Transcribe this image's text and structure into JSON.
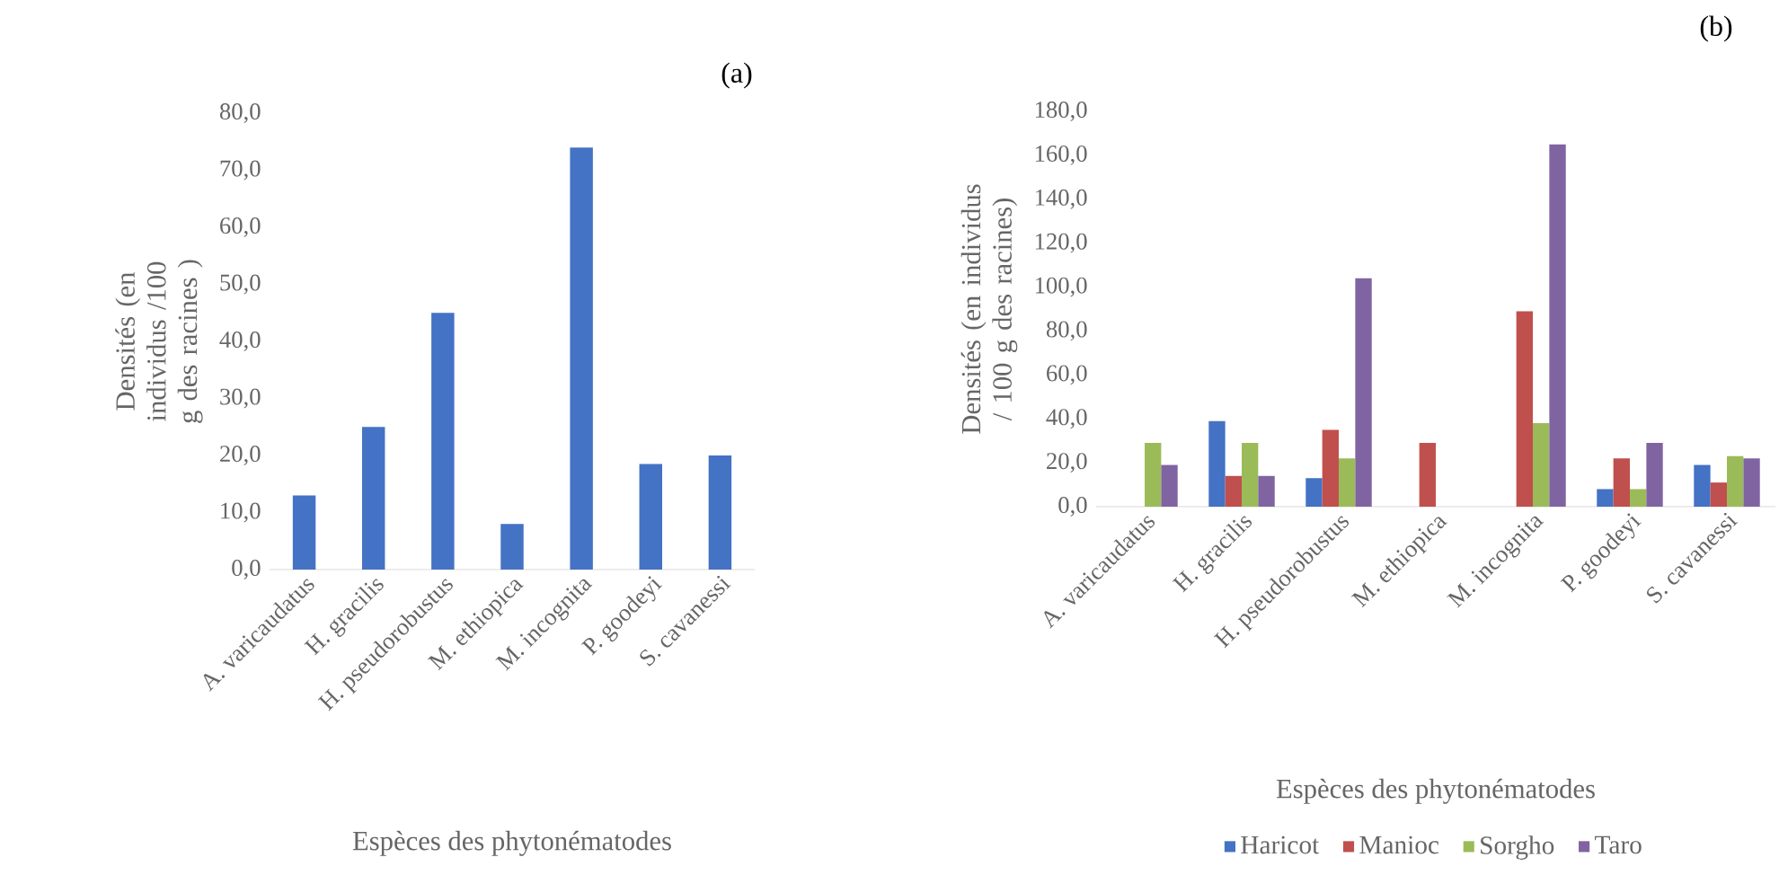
{
  "chart_data": [
    {
      "type": "bar",
      "title": "(a)",
      "xlabel": "Espèces des phytonématodes",
      "ylabel": "Densités (en  individus /100 g des racines )",
      "categories": [
        "A. varicaudatus",
        "H. gracilis",
        "H. pseudorobustus",
        "M. ethiopica",
        "M. incognita",
        "P. goodeyi",
        "S. cavanessi"
      ],
      "values": [
        13,
        25,
        45,
        8,
        74,
        18.5,
        20
      ],
      "color": "#4472c4",
      "ylim": [
        0,
        80
      ],
      "yticks": [
        {
          "value": 0,
          "label": "0,0"
        },
        {
          "value": 10,
          "label": "10,0"
        },
        {
          "value": 20,
          "label": "20,0"
        },
        {
          "value": 30,
          "label": "30,0"
        },
        {
          "value": 40,
          "label": "40,0"
        },
        {
          "value": 50,
          "label": "50,0"
        },
        {
          "value": 60,
          "label": "60,0"
        },
        {
          "value": 70,
          "label": "70,0"
        },
        {
          "value": 80,
          "label": "80,0"
        }
      ]
    },
    {
      "type": "bar",
      "title": "(b)",
      "xlabel": "Espèces des phytonématodes",
      "ylabel": "Densités (en individus / 100 g des racines)",
      "categories": [
        "A. varicaudatus",
        "H. gracilis",
        "H. pseudorobustus",
        "M. ethiopica",
        "M. incognita",
        "P. goodeyi",
        "S. cavanessi"
      ],
      "series": [
        {
          "name": "Haricot",
          "color": "#4472c4",
          "values": [
            null,
            39,
            13,
            null,
            null,
            8,
            19
          ]
        },
        {
          "name": "Manioc",
          "color": "#c0504d",
          "values": [
            null,
            14,
            35,
            29,
            89,
            22,
            11
          ]
        },
        {
          "name": "Sorgho",
          "color": "#9bbb59",
          "values": [
            29,
            29,
            22,
            null,
            38,
            8,
            23
          ]
        },
        {
          "name": "Taro",
          "color": "#8064a2",
          "values": [
            19,
            14,
            104,
            null,
            165,
            29,
            22
          ]
        }
      ],
      "ylim": [
        0,
        180
      ],
      "yticks": [
        {
          "value": 0,
          "label": "0,0"
        },
        {
          "value": 20,
          "label": "20,0"
        },
        {
          "value": 40,
          "label": "40,0"
        },
        {
          "value": 60,
          "label": "60,0"
        },
        {
          "value": 80,
          "label": "80,0"
        },
        {
          "value": 100,
          "label": "100,0"
        },
        {
          "value": 120,
          "label": "120,0"
        },
        {
          "value": 140,
          "label": "140,0"
        },
        {
          "value": 160,
          "label": "160,0"
        },
        {
          "value": 180,
          "label": "180,0"
        }
      ],
      "legend": "bottom"
    }
  ]
}
